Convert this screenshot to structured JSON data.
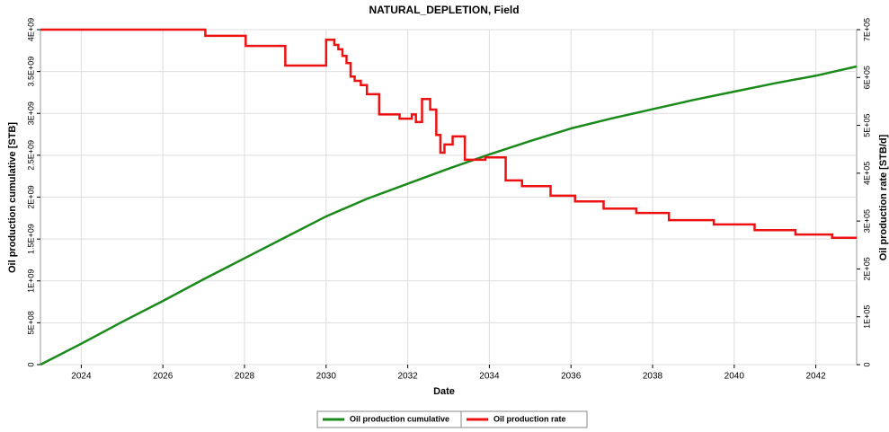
{
  "chart_data": {
    "type": "line",
    "title": "NATURAL_DEPLETION, Field",
    "x_label": "Date",
    "y_label": "Oil production cumulative [STB]",
    "y2_label": "Oil production rate [STB/d]",
    "xlim": [
      2023,
      2043
    ],
    "xticks": [
      2024,
      2026,
      2028,
      2030,
      2032,
      2034,
      2036,
      2038,
      2040,
      2042
    ],
    "ylim": [
      0,
      4000000000
    ],
    "yticks": [
      0,
      {
        "value": 500000000,
        "label": "5E+08"
      },
      {
        "value": 1000000000,
        "label": "1E+09"
      },
      {
        "value": 1500000000,
        "label": "1.5E+09"
      },
      {
        "value": 2000000000,
        "label": "2E+09"
      },
      {
        "value": 2500000000,
        "label": "2.5E+09"
      },
      {
        "value": 3000000000,
        "label": "3E+09"
      },
      {
        "value": 3500000000,
        "label": "3.5E+09"
      },
      {
        "value": 4000000000,
        "label": "4E+09"
      }
    ],
    "y2lim": [
      0,
      700000
    ],
    "y2ticks": [
      0,
      {
        "value": 100000,
        "label": "1E+05"
      },
      {
        "value": 200000,
        "label": "2E+05"
      },
      {
        "value": 300000,
        "label": "3E+05"
      },
      {
        "value": 400000,
        "label": "4E+05"
      },
      {
        "value": 500000,
        "label": "5E+05"
      },
      {
        "value": 600000,
        "label": "6E+05"
      },
      {
        "value": 700000,
        "label": "7E+05"
      }
    ],
    "grid": true,
    "legend": "bottom",
    "series": [
      {
        "name": "Oil production cumulative",
        "color": "#1a8a1a",
        "x": [
          2023,
          2024,
          2025,
          2026,
          2027,
          2028,
          2029,
          2030,
          2031,
          2032,
          2033,
          2034,
          2035,
          2036,
          2037,
          2038,
          2039,
          2040,
          2041,
          2042,
          2043
        ],
        "values": [
          0,
          250000000,
          510000000,
          760000000,
          1020000000,
          1270000000,
          1520000000,
          1770000000,
          1980000000,
          2160000000,
          2340000000,
          2510000000,
          2670000000,
          2820000000,
          2940000000,
          3050000000,
          3160000000,
          3260000000,
          3360000000,
          3450000000,
          3560000000
        ]
      },
      {
        "name": "Oil production rate",
        "color": "#ee1111",
        "axis": "y2",
        "x": [
          2023,
          2027.04,
          2027.04,
          2028.03,
          2028.03,
          2029,
          2029,
          2030,
          2030,
          2030.2,
          2030.2,
          2030.3,
          2030.3,
          2030.4,
          2030.4,
          2030.5,
          2030.5,
          2030.6,
          2030.6,
          2030.7,
          2030.7,
          2030.85,
          2030.85,
          2031,
          2031,
          2031.3,
          2031.3,
          2031.8,
          2031.8,
          2032.1,
          2032.1,
          2032.2,
          2032.2,
          2032.35,
          2032.35,
          2032.55,
          2032.55,
          2032.7,
          2032.7,
          2032.8,
          2032.8,
          2032.9,
          2032.9,
          2033.1,
          2033.1,
          2033.4,
          2033.4,
          2033.9,
          2033.9,
          2034.4,
          2034.4,
          2034.8,
          2034.8,
          2035.5,
          2035.5,
          2036.1,
          2036.1,
          2036.8,
          2036.8,
          2037.6,
          2037.6,
          2038.4,
          2038.4,
          2039.5,
          2039.5,
          2040.5,
          2040.5,
          2041.5,
          2041.5,
          2042.4,
          2042.4,
          2043
        ],
        "values": [
          700000,
          700000,
          687000,
          687000,
          666000,
          666000,
          625000,
          625000,
          679000,
          679000,
          668000,
          668000,
          659000,
          659000,
          645000,
          645000,
          630000,
          630000,
          602000,
          602000,
          593000,
          593000,
          584000,
          584000,
          565000,
          565000,
          523000,
          523000,
          514000,
          514000,
          523000,
          523000,
          507000,
          507000,
          555000,
          555000,
          533000,
          533000,
          480000,
          480000,
          443000,
          443000,
          460000,
          460000,
          477000,
          477000,
          428000,
          428000,
          433000,
          433000,
          385000,
          385000,
          373000,
          373000,
          353000,
          353000,
          341000,
          341000,
          326000,
          326000,
          317000,
          317000,
          302000,
          302000,
          293000,
          293000,
          281000,
          281000,
          272000,
          272000,
          265000,
          265000
        ]
      }
    ]
  }
}
